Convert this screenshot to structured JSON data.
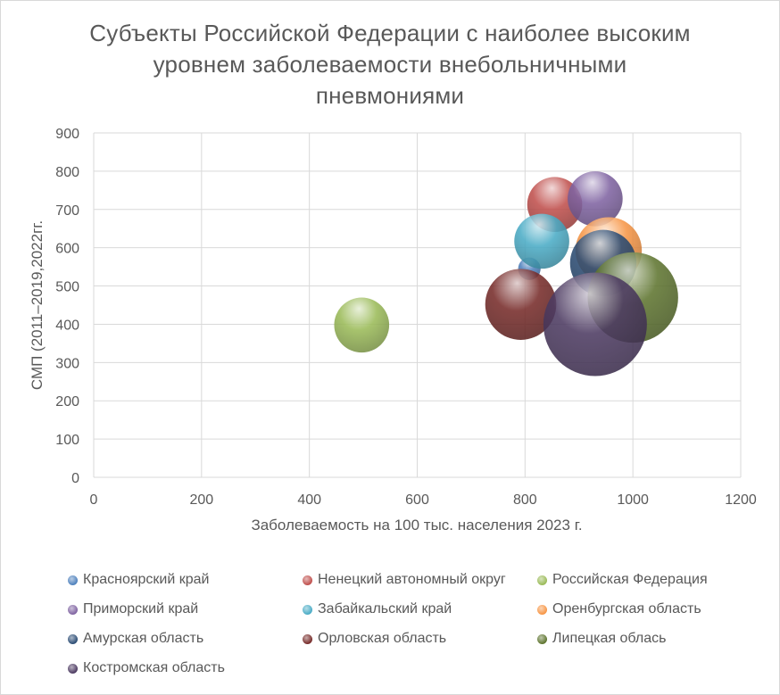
{
  "chart_data": {
    "type": "bubble",
    "title": "Субъекты Российской Федерации с наиболее высоким уровнем заболеваемости внебольничными пневмониями",
    "title_lines": [
      "Субъекты Российской Федерации с наиболее высоким",
      "уровнем заболеваемости  внебольничными",
      "пневмониями"
    ],
    "xlabel": "Заболеваемость на 100 тыс. населения 2023 г.",
    "ylabel": "СМП (2011–2019,2022гг.",
    "xlim": [
      0,
      1200
    ],
    "ylim": [
      0,
      900
    ],
    "x_ticks": [
      0,
      200,
      400,
      600,
      800,
      1000,
      1200
    ],
    "y_ticks": [
      0,
      100,
      200,
      300,
      400,
      500,
      600,
      700,
      800,
      900
    ],
    "grid": true,
    "legend_position": "bottom",
    "series": [
      {
        "name": "Красноярский край",
        "x": 808,
        "y": 545,
        "size": 8,
        "color": "#4f81bd"
      },
      {
        "name": "Ненецкий автономный округ",
        "x": 855,
        "y": 713,
        "size": 48,
        "color": "#c0504d"
      },
      {
        "name": "Российская Федерация",
        "x": 497,
        "y": 398,
        "size": 48,
        "color": "#9bbb59"
      },
      {
        "name": "Приморский край",
        "x": 930,
        "y": 728,
        "size": 48,
        "color": "#8064a2"
      },
      {
        "name": "Забайкальский край",
        "x": 831,
        "y": 617,
        "size": 48,
        "color": "#4bacc6"
      },
      {
        "name": "Оренбургская область",
        "x": 955,
        "y": 593,
        "size": 70,
        "color": "#f79646"
      },
      {
        "name": "Амурская область",
        "x": 945,
        "y": 560,
        "size": 70,
        "color": "#2c4d75"
      },
      {
        "name": "Орловская область",
        "x": 792,
        "y": 452,
        "size": 80,
        "color": "#772c2a"
      },
      {
        "name": "Липецкая облась",
        "x": 1000,
        "y": 470,
        "size": 130,
        "color": "#5f7530"
      },
      {
        "name": "Костромская область",
        "x": 930,
        "y": 400,
        "size": 170,
        "color": "#4d3b62"
      }
    ]
  }
}
